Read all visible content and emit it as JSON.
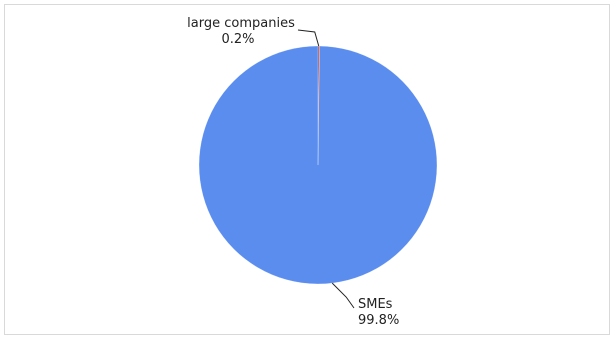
{
  "chart_data": {
    "type": "pie",
    "title": "",
    "categories": [
      "large companies",
      "SMEs"
    ],
    "values": [
      0.2,
      99.8
    ],
    "value_labels": [
      "0.2%",
      "99.8%"
    ],
    "colors": [
      "#c0392b",
      "#5b8def"
    ],
    "start_angle_deg": 0,
    "direction": "clockwise",
    "legend": "none",
    "label_style": "outside-with-leader-lines"
  }
}
